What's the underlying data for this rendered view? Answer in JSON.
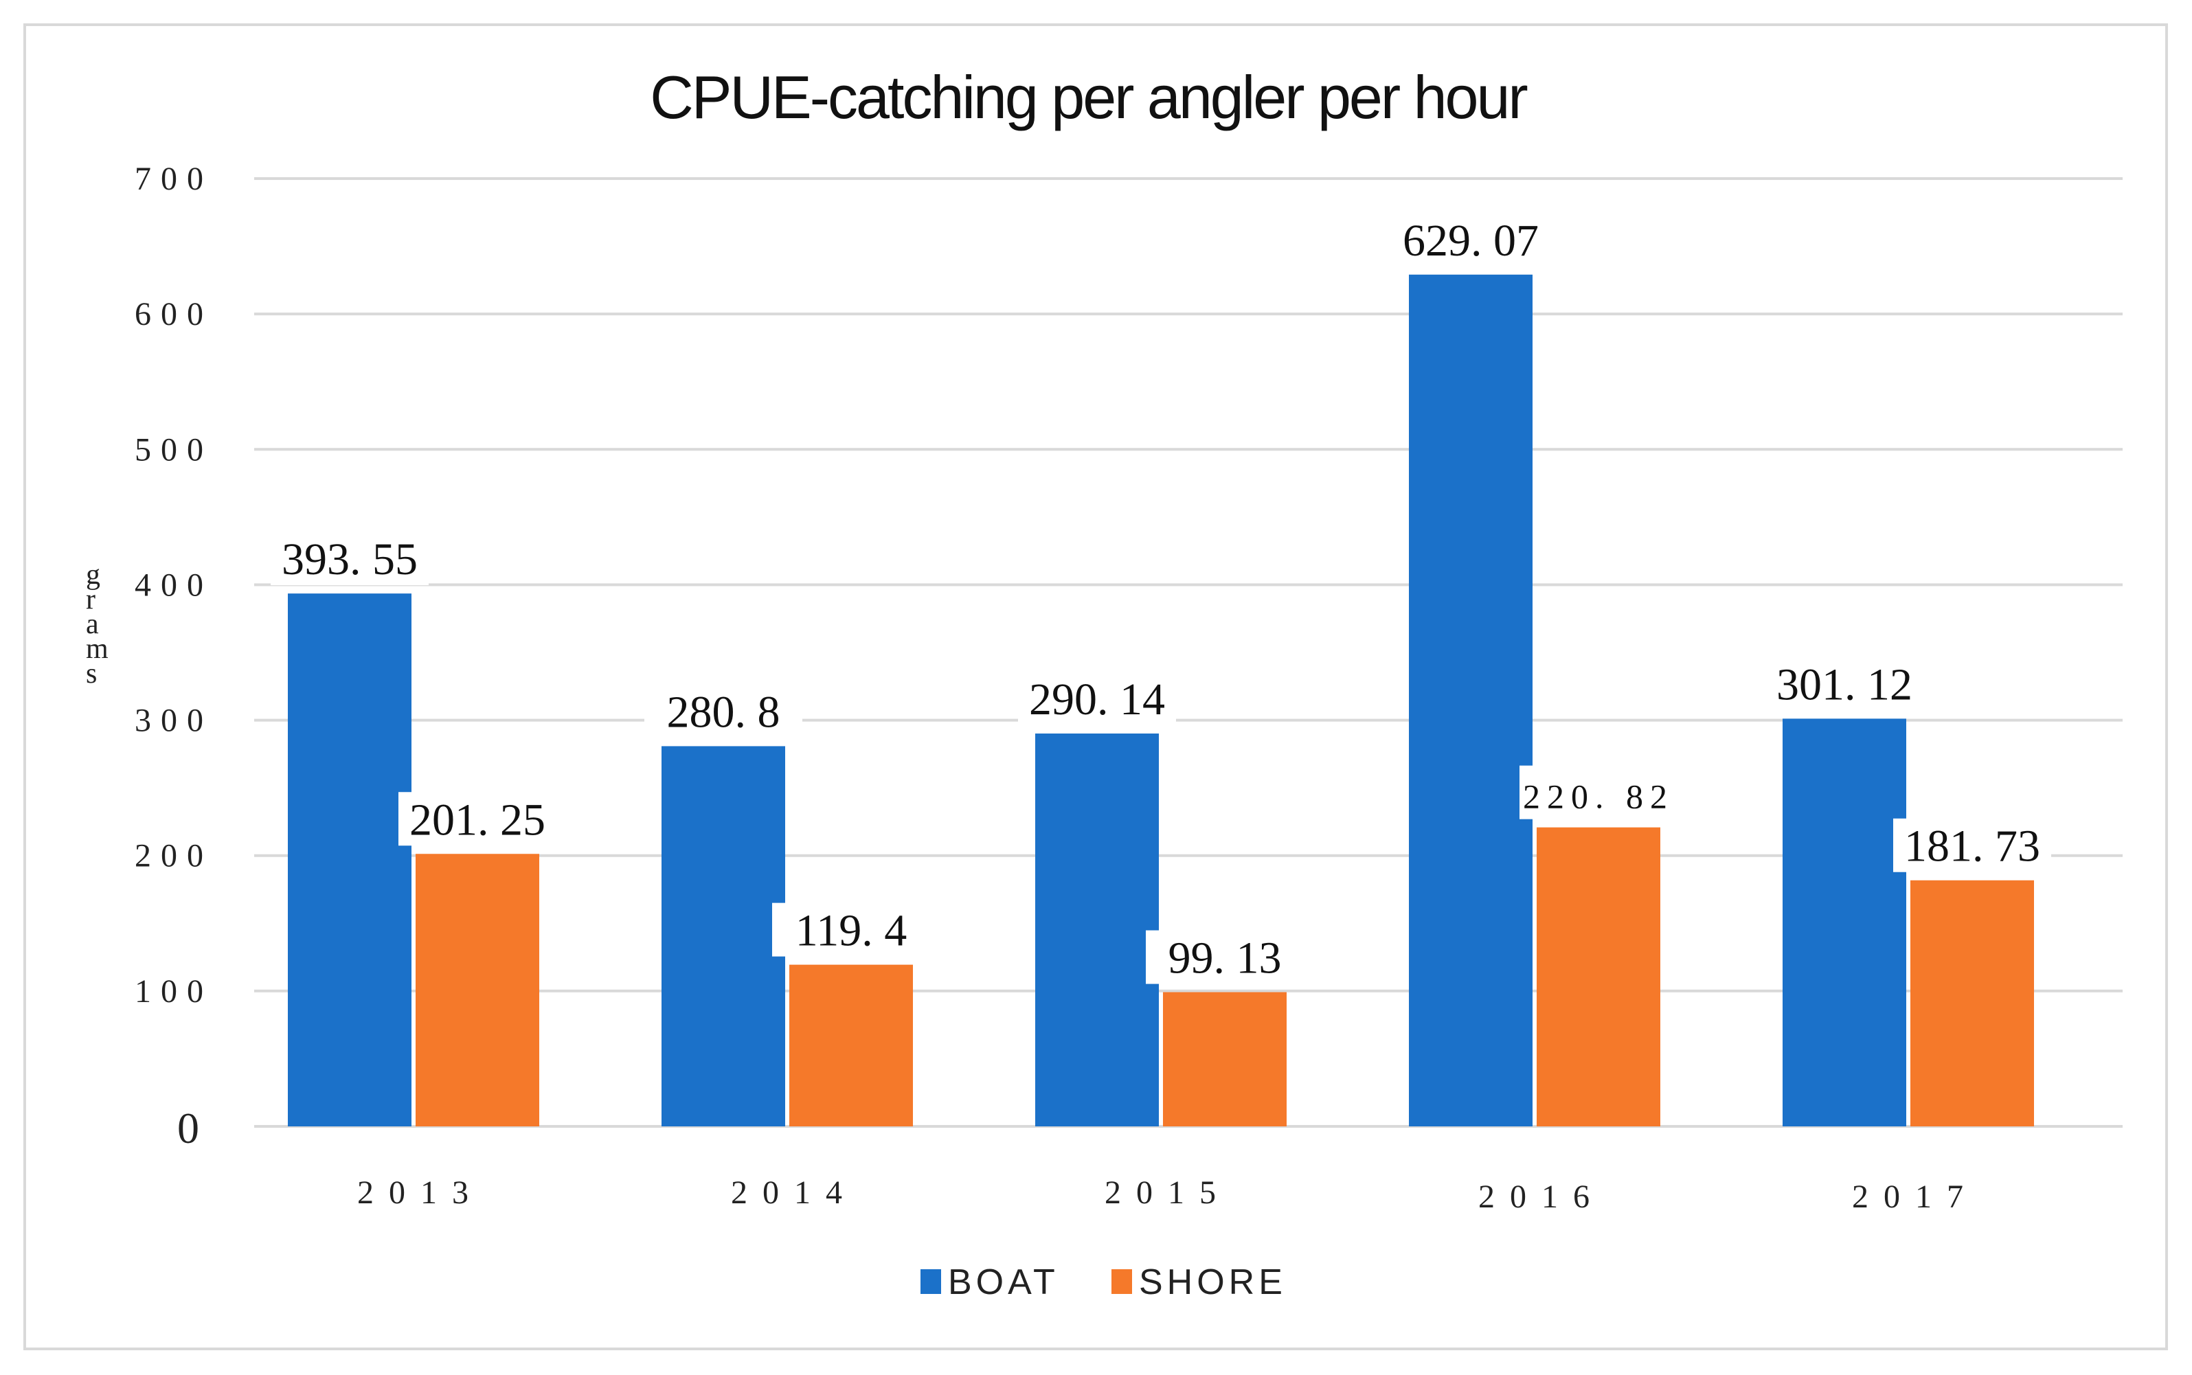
{
  "chart_data": {
    "type": "bar",
    "title": "CPUE-catching per angler per hour",
    "ylabel": "grams",
    "xlabel": "",
    "ylim": [
      0,
      700
    ],
    "yticks": [
      0,
      100,
      200,
      300,
      400,
      500,
      600,
      700
    ],
    "ytick_labels": [
      "0",
      "100",
      "200",
      "300",
      "400",
      "500",
      "600",
      "700"
    ],
    "categories": [
      "2013",
      "2014",
      "2015",
      "2016",
      "2017"
    ],
    "series": [
      {
        "name": "BOAT",
        "color": "#1b71c9",
        "values": [
          393.55,
          280.8,
          290.14,
          629.07,
          301.12
        ],
        "labels": [
          "393. 55",
          "280. 8",
          "290. 14",
          "629. 07",
          "301. 12"
        ]
      },
      {
        "name": "SHORE",
        "color": "#f5792a",
        "values": [
          201.25,
          119.4,
          99.13,
          220.82,
          181.73
        ],
        "labels": [
          "201. 25",
          "119. 4",
          "99. 13",
          "220. 82",
          "181. 73"
        ]
      }
    ],
    "legend": {
      "position": "bottom",
      "entries": [
        "BOAT",
        "SHORE"
      ]
    },
    "grid": true,
    "grid_color": "#d9d9d9"
  }
}
